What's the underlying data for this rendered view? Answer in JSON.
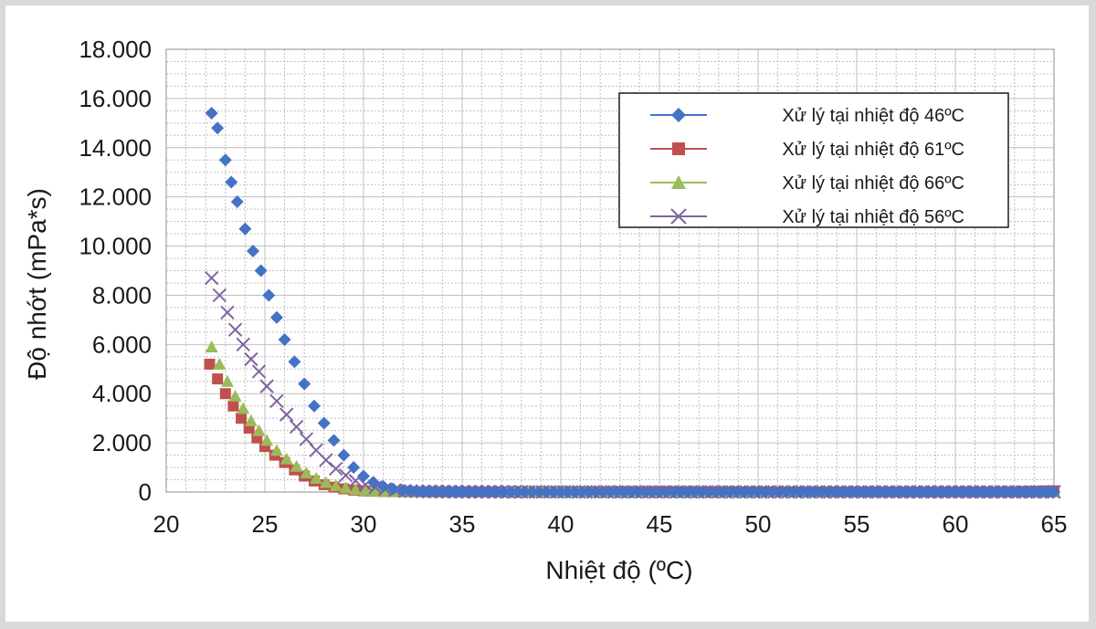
{
  "chart_data": {
    "type": "scatter",
    "title": "",
    "xlabel": "Nhiệt độ (ºC)",
    "ylabel": "Độ nhớt (mPa*s)",
    "xlim": [
      20,
      65
    ],
    "ylim": [
      0,
      18000
    ],
    "x_ticks": [
      "20",
      "25",
      "30",
      "35",
      "40",
      "45",
      "50",
      "55",
      "60",
      "65"
    ],
    "y_ticks": [
      "0",
      "2.000",
      "4.000",
      "6.000",
      "8.000",
      "10.000",
      "12.000",
      "14.000",
      "16.000",
      "18.000"
    ],
    "grid": true,
    "legend_position": "top-right",
    "series": [
      {
        "name": "Xử lý tại nhiệt độ 46ºC",
        "color": "#4472c4",
        "marker": "diamond",
        "points": [
          [
            22.3,
            15400
          ],
          [
            22.6,
            14800
          ],
          [
            23,
            13500
          ],
          [
            23.3,
            12600
          ],
          [
            23.6,
            11800
          ],
          [
            24,
            10700
          ],
          [
            24.4,
            9800
          ],
          [
            24.8,
            9000
          ],
          [
            25.2,
            8000
          ],
          [
            25.6,
            7100
          ],
          [
            26,
            6200
          ],
          [
            26.5,
            5300
          ],
          [
            27,
            4400
          ],
          [
            27.5,
            3500
          ],
          [
            28,
            2800
          ],
          [
            28.5,
            2100
          ],
          [
            29,
            1500
          ],
          [
            29.5,
            1000
          ],
          [
            30,
            650
          ],
          [
            30.5,
            400
          ],
          [
            31,
            230
          ],
          [
            31.5,
            130
          ],
          [
            32,
            70
          ],
          [
            33,
            30
          ],
          [
            34,
            15
          ],
          [
            36,
            8
          ],
          [
            40,
            5
          ],
          [
            45,
            5
          ],
          [
            50,
            5
          ],
          [
            55,
            5
          ],
          [
            60,
            5
          ],
          [
            65,
            5
          ]
        ]
      },
      {
        "name": "Xử lý tại nhiệt độ 61ºC",
        "color": "#c0504d",
        "marker": "square",
        "points": [
          [
            22.2,
            5200
          ],
          [
            22.6,
            4600
          ],
          [
            23,
            4000
          ],
          [
            23.4,
            3500
          ],
          [
            23.8,
            3000
          ],
          [
            24.2,
            2600
          ],
          [
            24.6,
            2200
          ],
          [
            25,
            1850
          ],
          [
            25.5,
            1500
          ],
          [
            26,
            1200
          ],
          [
            26.5,
            900
          ],
          [
            27,
            650
          ],
          [
            27.5,
            450
          ],
          [
            28,
            300
          ],
          [
            28.5,
            200
          ],
          [
            29,
            130
          ],
          [
            29.5,
            80
          ],
          [
            30,
            50
          ],
          [
            31,
            25
          ],
          [
            32,
            12
          ],
          [
            34,
            6
          ],
          [
            38,
            4
          ],
          [
            44,
            4
          ],
          [
            50,
            4
          ],
          [
            56,
            4
          ],
          [
            62,
            4
          ],
          [
            65,
            50
          ]
        ]
      },
      {
        "name": "Xử lý tại nhiệt độ 66ºC",
        "color": "#9bbb59",
        "marker": "triangle",
        "points": [
          [
            22.3,
            5900
          ],
          [
            22.7,
            5200
          ],
          [
            23.1,
            4500
          ],
          [
            23.5,
            3900
          ],
          [
            23.9,
            3400
          ],
          [
            24.3,
            2900
          ],
          [
            24.7,
            2500
          ],
          [
            25.1,
            2100
          ],
          [
            25.6,
            1700
          ],
          [
            26.1,
            1350
          ],
          [
            26.6,
            1050
          ],
          [
            27.1,
            780
          ],
          [
            27.6,
            560
          ],
          [
            28.1,
            390
          ],
          [
            28.6,
            260
          ],
          [
            29.1,
            170
          ],
          [
            29.6,
            110
          ],
          [
            30.1,
            70
          ],
          [
            31,
            35
          ],
          [
            32,
            18
          ],
          [
            34,
            8
          ],
          [
            38,
            5
          ],
          [
            44,
            5
          ],
          [
            50,
            5
          ],
          [
            56,
            5
          ],
          [
            62,
            5
          ],
          [
            65,
            5
          ]
        ]
      },
      {
        "name": "Xử lý tại nhiệt độ 56ºC",
        "color": "#8064a2",
        "marker": "x",
        "points": [
          [
            22.3,
            8700
          ],
          [
            22.7,
            8000
          ],
          [
            23.1,
            7300
          ],
          [
            23.5,
            6600
          ],
          [
            23.9,
            6000
          ],
          [
            24.3,
            5400
          ],
          [
            24.7,
            4900
          ],
          [
            25.1,
            4300
          ],
          [
            25.6,
            3700
          ],
          [
            26.1,
            3150
          ],
          [
            26.6,
            2650
          ],
          [
            27.1,
            2150
          ],
          [
            27.6,
            1700
          ],
          [
            28.1,
            1300
          ],
          [
            28.6,
            950
          ],
          [
            29.1,
            680
          ],
          [
            29.6,
            460
          ],
          [
            30.1,
            300
          ],
          [
            30.6,
            190
          ],
          [
            31.1,
            120
          ],
          [
            31.6,
            75
          ],
          [
            32.1,
            45
          ],
          [
            33,
            25
          ],
          [
            35,
            12
          ],
          [
            38,
            8
          ],
          [
            42,
            6
          ],
          [
            48,
            6
          ],
          [
            54,
            6
          ],
          [
            60,
            6
          ],
          [
            65,
            6
          ]
        ]
      }
    ]
  }
}
